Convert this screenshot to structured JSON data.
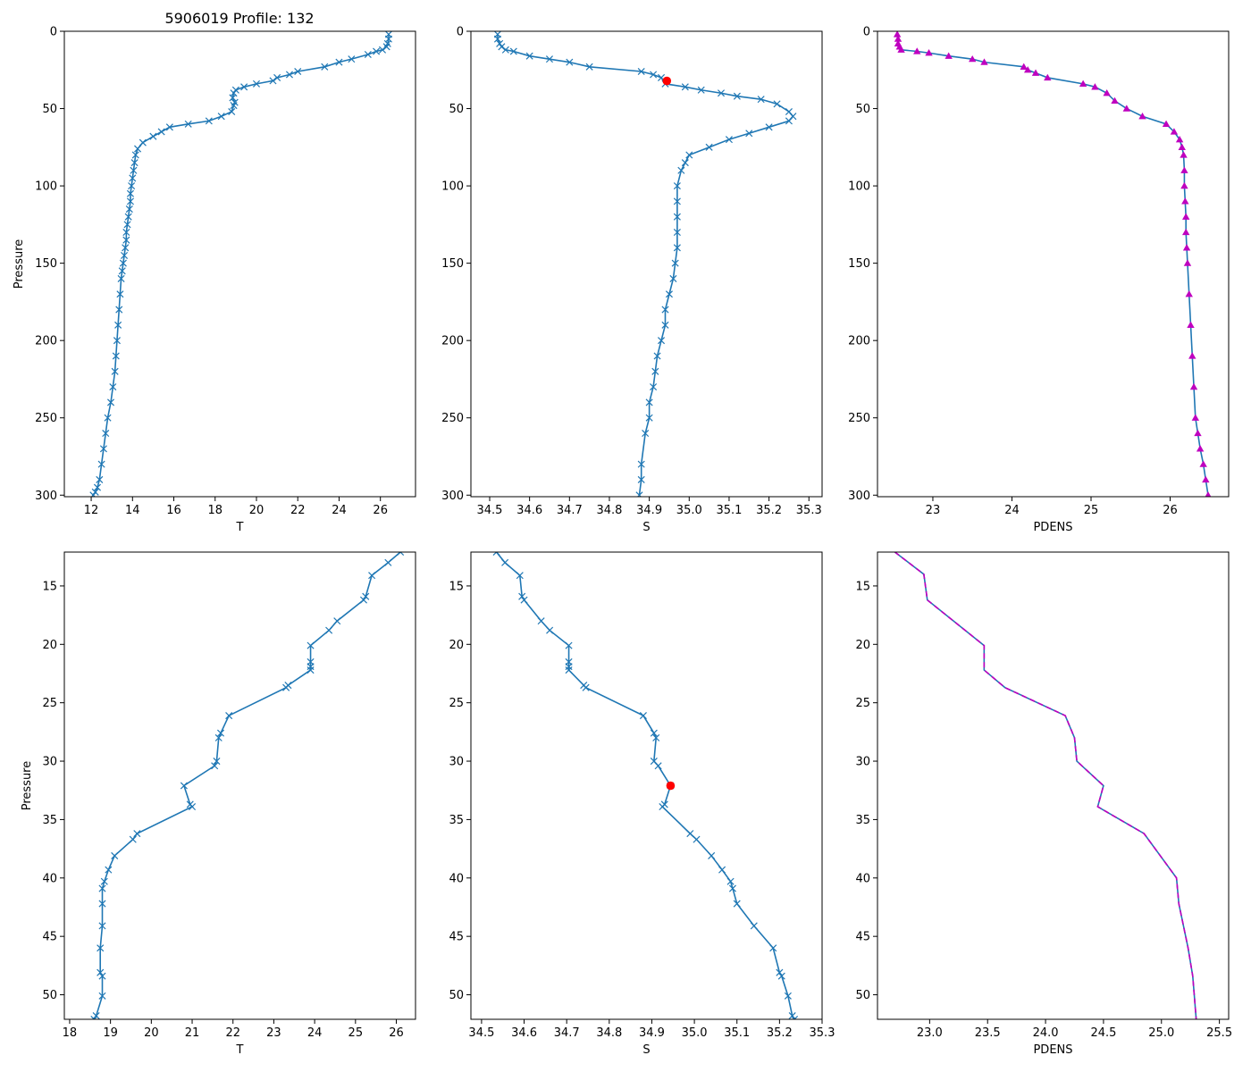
{
  "title": "5906019 Profile: 132",
  "colors": {
    "series": "#1f77b4",
    "highlight": "#ff0000",
    "density_marker": "#bf00bf",
    "density_dash": "#bf00bf"
  },
  "chart_data": [
    {
      "id": "top-temperature",
      "type": "line",
      "xlabel": "T",
      "ylabel": "Pressure",
      "xlim": [
        10.7,
        27.7
      ],
      "ylim": [
        301,
        0
      ],
      "xticks": [
        12,
        14,
        16,
        18,
        20,
        22,
        24,
        26
      ],
      "xtick_labels": [
        "12",
        "14",
        "16",
        "18",
        "20",
        "22",
        "24",
        "26"
      ],
      "yticks": [
        0,
        50,
        100,
        150,
        200,
        250,
        300
      ],
      "ytick_labels": [
        "0",
        "50",
        "100",
        "150",
        "200",
        "250",
        "300"
      ],
      "marker": "x",
      "series": [
        {
          "name": "T",
          "x": [
            26.4,
            26.4,
            26.35,
            26.3,
            26.1,
            25.8,
            25.4,
            24.6,
            24.0,
            23.3,
            22.0,
            21.6,
            21.0,
            20.8,
            20.0,
            19.4,
            19.0,
            18.9,
            18.85,
            18.95,
            18.9,
            18.8,
            18.3,
            17.7,
            16.7,
            15.8,
            15.4,
            15.0,
            14.5,
            14.25,
            14.15,
            14.1,
            14.05,
            14.0,
            13.95,
            13.9,
            13.9,
            13.85,
            13.8,
            13.75,
            13.7,
            13.7,
            13.65,
            13.6,
            13.55,
            13.5,
            13.45,
            13.4,
            13.35,
            13.3,
            13.25,
            13.2,
            13.15,
            13.05,
            12.95,
            12.8,
            12.7,
            12.6,
            12.5,
            12.4,
            12.3,
            12.2,
            12.1
          ],
          "y": [
            2,
            5,
            8,
            10,
            12,
            13,
            15,
            18,
            20,
            23,
            26,
            28,
            30,
            32,
            34,
            36,
            38,
            40,
            43,
            46,
            48,
            52,
            55,
            58,
            60,
            62,
            65,
            68,
            72,
            76,
            80,
            85,
            90,
            95,
            100,
            105,
            110,
            115,
            120,
            125,
            130,
            135,
            140,
            145,
            150,
            155,
            160,
            170,
            180,
            190,
            200,
            210,
            220,
            230,
            240,
            250,
            260,
            270,
            280,
            290,
            295,
            298,
            300
          ]
        }
      ]
    },
    {
      "id": "top-salinity",
      "type": "line",
      "xlabel": "S",
      "ylabel": "",
      "xlim": [
        34.453,
        35.333
      ],
      "ylim": [
        301,
        0
      ],
      "xticks": [
        34.5,
        34.6,
        34.7,
        34.8,
        34.9,
        35.0,
        35.1,
        35.2,
        35.3
      ],
      "xtick_labels": [
        "34.5",
        "34.6",
        "34.7",
        "34.8",
        "34.9",
        "35.0",
        "35.1",
        "35.2",
        "35.3"
      ],
      "yticks": [
        0,
        50,
        100,
        150,
        200,
        250,
        300
      ],
      "ytick_labels": [
        "0",
        "50",
        "100",
        "150",
        "200",
        "250",
        "300"
      ],
      "marker": "x",
      "highlight": {
        "x": 34.944,
        "y": 32.1
      },
      "series": [
        {
          "name": "S",
          "x": [
            34.52,
            34.52,
            34.525,
            34.53,
            34.54,
            34.56,
            34.6,
            34.65,
            34.7,
            34.75,
            34.88,
            34.91,
            34.93,
            34.94,
            34.99,
            35.03,
            35.08,
            35.12,
            35.18,
            35.22,
            35.25,
            35.26,
            35.25,
            35.2,
            35.15,
            35.1,
            35.05,
            35.0,
            34.99,
            34.98,
            34.97,
            34.97,
            34.97,
            34.97,
            34.97,
            34.965,
            34.96,
            34.95,
            34.94,
            34.94,
            34.93,
            34.92,
            34.915,
            34.91,
            34.9,
            34.9,
            34.89,
            34.88,
            34.88,
            34.875
          ],
          "y": [
            2,
            5,
            8,
            10,
            12,
            13,
            16,
            18,
            20,
            23,
            26,
            28,
            30,
            34,
            36,
            38,
            40,
            42,
            44,
            47,
            52,
            55,
            58,
            62,
            66,
            70,
            75,
            80,
            85,
            90,
            100,
            110,
            120,
            130,
            140,
            150,
            160,
            170,
            180,
            190,
            200,
            210,
            220,
            230,
            240,
            250,
            260,
            280,
            290,
            300
          ]
        }
      ]
    },
    {
      "id": "top-density",
      "type": "line",
      "xlabel": "PDENS",
      "ylabel": "",
      "xlim": [
        22.3,
        26.74
      ],
      "ylim": [
        301,
        0
      ],
      "xticks": [
        23,
        24,
        25,
        26
      ],
      "xtick_labels": [
        "23",
        "24",
        "25",
        "26"
      ],
      "yticks": [
        0,
        50,
        100,
        150,
        200,
        250,
        300
      ],
      "ytick_labels": [
        "0",
        "50",
        "100",
        "150",
        "200",
        "250",
        "300"
      ],
      "marker": "triangle",
      "series": [
        {
          "name": "PDENS",
          "x": [
            22.55,
            22.56,
            22.56,
            22.58,
            22.6,
            22.8,
            22.95,
            23.2,
            23.5,
            23.65,
            24.15,
            24.2,
            24.3,
            24.45,
            24.9,
            25.05,
            25.2,
            25.3,
            25.45,
            25.65,
            25.95,
            26.05,
            26.12,
            26.15,
            26.17,
            26.18,
            26.18,
            26.19,
            26.2,
            26.2,
            26.21,
            26.22,
            26.24,
            26.26,
            26.28,
            26.3,
            26.32,
            26.35,
            26.38,
            26.42,
            26.45,
            26.48
          ],
          "y": [
            2,
            5,
            8,
            10,
            12,
            13,
            14,
            16,
            18,
            20,
            23,
            25,
            27,
            30,
            34,
            36,
            40,
            45,
            50,
            55,
            60,
            65,
            70,
            75,
            80,
            90,
            100,
            110,
            120,
            130,
            140,
            150,
            170,
            190,
            210,
            230,
            250,
            260,
            270,
            280,
            290,
            300
          ]
        }
      ]
    },
    {
      "id": "bottom-temperature",
      "type": "line",
      "xlabel": "T",
      "ylabel": "Pressure",
      "xlim": [
        17.87,
        26.47
      ],
      "ylim": [
        52.1,
        12.1
      ],
      "xticks": [
        18,
        19,
        20,
        21,
        22,
        23,
        24,
        25,
        26
      ],
      "xtick_labels": [
        "18",
        "19",
        "20",
        "21",
        "22",
        "23",
        "24",
        "25",
        "26"
      ],
      "yticks": [
        15,
        20,
        25,
        30,
        35,
        40,
        45,
        50
      ],
      "ytick_labels": [
        "15",
        "20",
        "25",
        "30",
        "35",
        "40",
        "45",
        "50"
      ],
      "marker": "x",
      "series": [
        {
          "name": "T",
          "x": [
            26.1,
            25.8,
            25.4,
            25.25,
            25.2,
            24.55,
            24.35,
            23.9,
            23.9,
            23.9,
            23.9,
            23.35,
            23.3,
            21.9,
            21.7,
            21.65,
            21.6,
            21.55,
            20.8,
            20.95,
            21.0,
            19.65,
            19.55,
            19.1,
            18.95,
            18.85,
            18.8,
            18.8,
            18.8,
            18.75,
            18.75,
            18.8,
            18.8,
            18.65,
            18.6
          ],
          "y": [
            12.1,
            13.0,
            14.1,
            15.9,
            16.2,
            18.0,
            18.8,
            20.1,
            21.5,
            21.9,
            22.2,
            23.5,
            23.7,
            26.1,
            27.6,
            28.0,
            30.0,
            30.4,
            32.1,
            33.7,
            33.9,
            36.2,
            36.7,
            38.1,
            39.3,
            40.3,
            40.9,
            42.2,
            44.1,
            46.0,
            48.1,
            48.4,
            50.1,
            51.8,
            52.1
          ]
        }
      ]
    },
    {
      "id": "bottom-salinity",
      "type": "line",
      "xlabel": "S",
      "ylabel": "",
      "xlim": [
        34.475,
        35.3
      ],
      "ylim": [
        52.1,
        12.1
      ],
      "xticks": [
        34.5,
        34.6,
        34.7,
        34.8,
        34.9,
        35.0,
        35.1,
        35.2,
        35.3
      ],
      "xtick_labels": [
        "34.5",
        "34.6",
        "34.7",
        "34.8",
        "34.9",
        "35.0",
        "35.1",
        "35.2",
        "35.3"
      ],
      "yticks": [
        15,
        20,
        25,
        30,
        35,
        40,
        45,
        50
      ],
      "ytick_labels": [
        "15",
        "20",
        "25",
        "30",
        "35",
        "40",
        "45",
        "50"
      ],
      "marker": "x",
      "highlight": {
        "x": 34.944,
        "y": 32.1
      },
      "series": [
        {
          "name": "S",
          "x": [
            34.535,
            34.555,
            34.59,
            34.595,
            34.6,
            34.64,
            34.66,
            34.705,
            34.705,
            34.705,
            34.705,
            34.74,
            34.745,
            34.88,
            34.905,
            34.91,
            34.905,
            34.915,
            34.944,
            34.93,
            34.925,
            34.99,
            35.005,
            35.04,
            35.065,
            35.085,
            35.09,
            35.1,
            35.14,
            35.185,
            35.2,
            35.205,
            35.22,
            35.23,
            35.235
          ],
          "y": [
            12.1,
            13.0,
            14.1,
            15.9,
            16.2,
            18.0,
            18.8,
            20.1,
            21.5,
            21.9,
            22.2,
            23.5,
            23.7,
            26.1,
            27.6,
            28.0,
            30.0,
            30.4,
            32.1,
            33.7,
            33.9,
            36.2,
            36.7,
            38.1,
            39.3,
            40.3,
            40.9,
            42.2,
            44.1,
            46.0,
            48.1,
            48.4,
            50.1,
            51.8,
            52.1
          ]
        }
      ]
    },
    {
      "id": "bottom-density",
      "type": "line",
      "xlabel": "PDENS",
      "ylabel": "",
      "xlim": [
        22.55,
        25.58
      ],
      "ylim": [
        52.1,
        12.1
      ],
      "xticks": [
        23.0,
        23.5,
        24.0,
        24.5,
        25.0,
        25.5
      ],
      "xtick_labels": [
        "23.0",
        "23.5",
        "24.0",
        "24.5",
        "25.0",
        "25.5"
      ],
      "yticks": [
        15,
        20,
        25,
        30,
        35,
        40,
        45,
        50
      ],
      "ytick_labels": [
        "15",
        "20",
        "25",
        "30",
        "35",
        "40",
        "45",
        "50"
      ],
      "marker": "dashed",
      "series": [
        {
          "name": "PDENS",
          "x": [
            22.7,
            22.95,
            22.98,
            23.47,
            23.47,
            23.65,
            24.17,
            24.25,
            24.27,
            24.5,
            24.45,
            24.85,
            24.99,
            25.13,
            25.15,
            25.23,
            25.27,
            25.3
          ],
          "y": [
            12.1,
            14.0,
            16.2,
            20.1,
            22.2,
            23.7,
            26.1,
            28.0,
            30.0,
            32.1,
            33.9,
            36.2,
            38.1,
            40.0,
            42.2,
            46.0,
            48.4,
            52.1
          ]
        }
      ]
    }
  ]
}
